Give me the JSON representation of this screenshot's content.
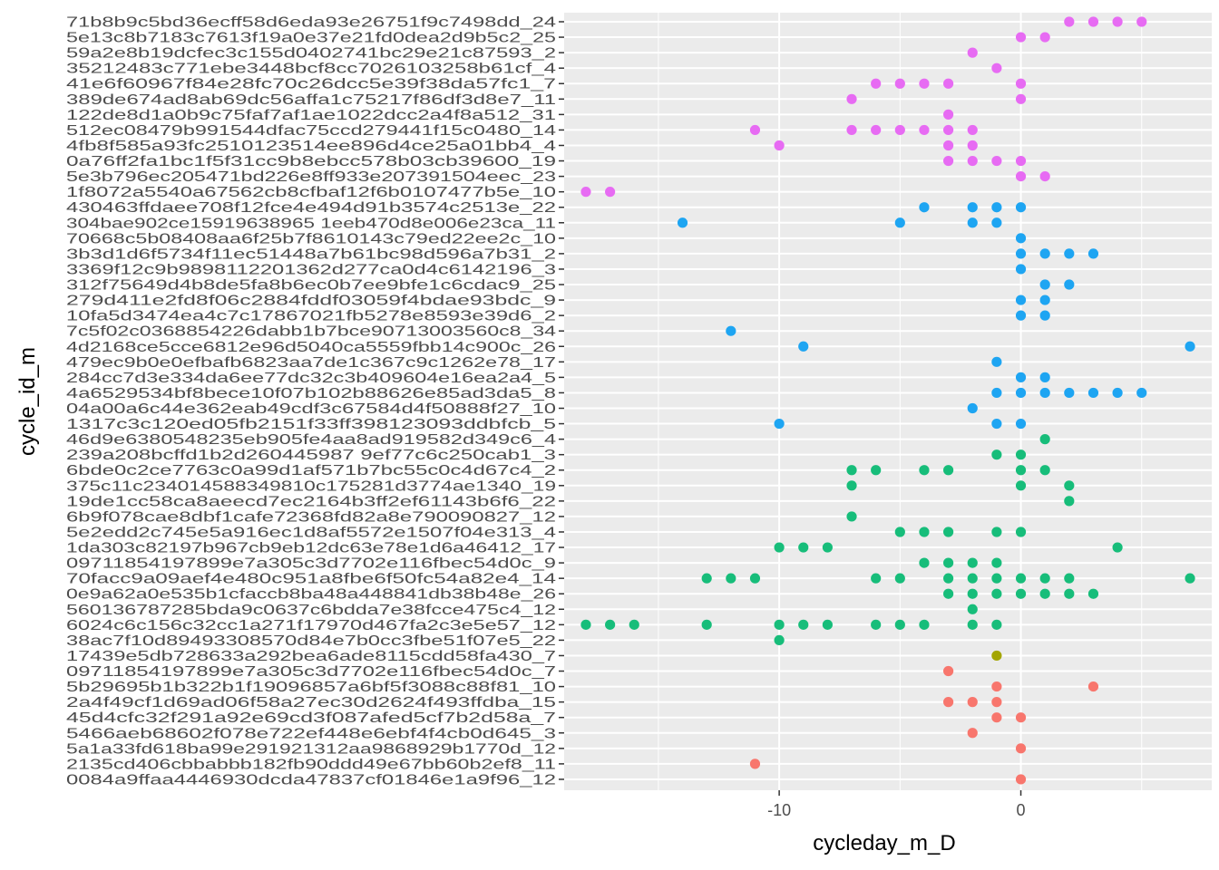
{
  "chart_data": {
    "type": "scatter",
    "xlabel": "cycleday_m_D",
    "ylabel": "cycle_id_m",
    "xlim": [
      -18.9,
      7.9
    ],
    "x_ticks": [
      -10,
      0
    ],
    "x_tick_labels": [
      "-10",
      "0"
    ],
    "grid": true,
    "legend": "none",
    "colors": {
      "panel": "#ebebeb",
      "gridline": "#ffffff",
      "magenta": "#e76bf3",
      "blue": "#1ea5f2",
      "green": "#17bd7a",
      "olive": "#a3a500",
      "red": "#f8766d"
    },
    "categories": [
      "71b8b9c5bd36ecff58d6eda93e26751f9c7498dd_24",
      "5e13c8b7183c7613f19a0e37e21fd0dea2d9b5c2_25",
      "59a2e8b19dcfec3c155d0402741bc29e21c87593_2",
      "35212483c771ebe3448bcf8cc7026103258b61cf_4",
      "41e6f60967f84e28fc70c26dcc5e39f38da57fc1_7",
      "389de674ad8ab69dc56affa1c75217f86df3d8e7_11",
      "122de8d1a0b9c75faf7af1ae1022dcc2a4f8a512_31",
      "512ec08479b991544dfac75ccd279441f15c0480_14",
      "4fb8f585a93fc2510123514ee896d4ce25a01bb4_4",
      "0a76ff2fa1bc1f5f31cc9b8ebcc578b03cb39600_19",
      "5e3b796ec205471bd226e8ff933e207391504eec_23",
      "1f8072a5540a67562cb8cfbaf12f6b0107477b5e_10",
      "430463ffdaee708f12fce4e494d91b3574c2513e_22",
      "304bae902ce15919638965 1eeb470d8e006e23ca_11",
      "70668c5b08408aa6f25b7f8610143c79ed22ee2c_10",
      "3b3d1d6f5734f11ec51448a7b61bc98d596a7b31_2",
      "3369f12c9b9898112201362d277ca0d4c6142196_3",
      "312f75649d4b8de5fa8b6ec0b7ee9bfe1c6cdac9_25",
      "279d411e2fd8f06c2884fddf03059f4bdae93bdc_9",
      "10fa5d3474ea4c7c17867021fb5278e8593e39d6_2",
      "7c5f02c0368854226dabb1b7bce90713003560c8_34",
      "4d2168ce5cce6812e96d5040ca5559fbb14c900c_26",
      "479ec9b0e0efbafb6823aa7de1c367c9c1262e78_17",
      "284cc7d3e334da6ee77dc32c3b409604e16ea2a4_5",
      "4a6529534bf8bece10f07b102b88626e85ad3da5_8",
      "04a00a6c44e362eab49cdf3c67584d4f50888f27_10",
      "1317c3c120ed05fb2151f33ff398123093ddbfcb_5",
      "46d9e6380548235eb905fe4aa8ad919582d349c6_4",
      "239a208bcffd1b2d260445987 9ef77c6c250cab1_3",
      "6bde0c2ce7763c0a99d1af571b7bc55c0c4d67c4_2",
      "375c11c234014588349810c175281d3774ae1340_19",
      "19de1cc58ca8aeecd7ec2164b3ff2ef61143b6f6_22",
      "6b9f078cae8dbf1cafe72368fd82a8e790090827_12",
      "5e2edd2c745e5a916ec1d8af5572e1507f04e313_4",
      "1da303c82197b967cb9eb12dc63e78e1d6a46412_17",
      "09711854197899e7a305c3d7702e116fbec54d0c_9",
      "70facc9a09aef4e480c951a8fbe6f50fc54a82e4_14",
      "0e9a62a0e535b1cfaccb8ba48a448841db38b48e_26",
      "560136787285bda9c0637c6bdda7e38fcce475c4_12",
      "6024c6c156c32cc1a271f17970d467fa2c3e5e57_12",
      "38ac7f10d89493308570d84e7b0cc3fbe51f07e5_22",
      "17439e5db728633a292bea6ade8115cdd58fa430_7",
      "09711854197899e7a305c3d7702e116fbec54d0c_7",
      "5b29695b1b322b1f19096857a6bf5f3088c88f81_10",
      "2a4f49cf1d69ad06f58a27ec30d2624f493ffdba_15",
      "45d4cfc32f291a92e69cd3f087afed5cf7b2d58a_7",
      "5466aeb68602f078e722ef448e6ebf4f4cb0d645_3",
      "5a1a33fd618ba99e291921312aa9868929b1770d_12",
      "2135cd406cbbabbb182fb90ddd49e67bb60b2ef8_11",
      "0084a9ffaa4446930dcda47837cf01846e1a9f96_12"
    ],
    "points": [
      {
        "cat": 0,
        "color": "magenta",
        "x": [
          2,
          3,
          4,
          5
        ]
      },
      {
        "cat": 1,
        "color": "magenta",
        "x": [
          0,
          1
        ]
      },
      {
        "cat": 2,
        "color": "magenta",
        "x": [
          -2
        ]
      },
      {
        "cat": 3,
        "color": "magenta",
        "x": [
          -1
        ]
      },
      {
        "cat": 4,
        "color": "magenta",
        "x": [
          -6,
          -5,
          -4,
          -3,
          0
        ]
      },
      {
        "cat": 5,
        "color": "magenta",
        "x": [
          -7,
          0
        ]
      },
      {
        "cat": 6,
        "color": "magenta",
        "x": [
          -3
        ]
      },
      {
        "cat": 7,
        "color": "magenta",
        "x": [
          -11,
          -7,
          -6,
          -5,
          -4,
          -3,
          -2
        ]
      },
      {
        "cat": 8,
        "color": "magenta",
        "x": [
          -10,
          -3,
          -2
        ]
      },
      {
        "cat": 9,
        "color": "magenta",
        "x": [
          -3,
          -2,
          -1,
          0
        ]
      },
      {
        "cat": 10,
        "color": "magenta",
        "x": [
          0,
          1
        ]
      },
      {
        "cat": 11,
        "color": "magenta",
        "x": [
          -18,
          -17
        ]
      },
      {
        "cat": 12,
        "color": "blue",
        "x": [
          -4,
          -2,
          -1,
          0
        ]
      },
      {
        "cat": 13,
        "color": "blue",
        "x": [
          -14,
          -5,
          -2,
          -1
        ]
      },
      {
        "cat": 14,
        "color": "blue",
        "x": [
          0
        ]
      },
      {
        "cat": 15,
        "color": "blue",
        "x": [
          0,
          1,
          2,
          3
        ]
      },
      {
        "cat": 16,
        "color": "blue",
        "x": [
          0
        ]
      },
      {
        "cat": 17,
        "color": "blue",
        "x": [
          1,
          2
        ]
      },
      {
        "cat": 18,
        "color": "blue",
        "x": [
          0,
          1
        ]
      },
      {
        "cat": 19,
        "color": "blue",
        "x": [
          0,
          1
        ]
      },
      {
        "cat": 20,
        "color": "blue",
        "x": [
          -12
        ]
      },
      {
        "cat": 21,
        "color": "blue",
        "x": [
          -9,
          7
        ]
      },
      {
        "cat": 22,
        "color": "blue",
        "x": [
          -1
        ]
      },
      {
        "cat": 23,
        "color": "blue",
        "x": [
          0,
          1
        ]
      },
      {
        "cat": 24,
        "color": "blue",
        "x": [
          -1,
          0,
          1,
          2,
          3,
          4,
          5
        ]
      },
      {
        "cat": 25,
        "color": "blue",
        "x": [
          -2
        ]
      },
      {
        "cat": 26,
        "color": "blue",
        "x": [
          -10,
          -1,
          0
        ]
      },
      {
        "cat": 27,
        "color": "green",
        "x": [
          1
        ]
      },
      {
        "cat": 28,
        "color": "green",
        "x": [
          -1,
          0
        ]
      },
      {
        "cat": 29,
        "color": "green",
        "x": [
          -7,
          -6,
          -4,
          -3,
          0,
          1
        ]
      },
      {
        "cat": 30,
        "color": "green",
        "x": [
          -7,
          0,
          2
        ]
      },
      {
        "cat": 31,
        "color": "green",
        "x": [
          2
        ]
      },
      {
        "cat": 32,
        "color": "green",
        "x": [
          -7
        ]
      },
      {
        "cat": 33,
        "color": "green",
        "x": [
          -5,
          -4,
          -3,
          -1,
          0
        ]
      },
      {
        "cat": 34,
        "color": "green",
        "x": [
          -10,
          -9,
          -8,
          4
        ]
      },
      {
        "cat": 35,
        "color": "green",
        "x": [
          -4,
          -3,
          -2,
          -1
        ]
      },
      {
        "cat": 36,
        "color": "green",
        "x": [
          -13,
          -12,
          -11,
          -6,
          -5,
          -3,
          -2,
          -1,
          0,
          1,
          2,
          7
        ]
      },
      {
        "cat": 37,
        "color": "green",
        "x": [
          -3,
          -2,
          -1,
          0,
          1,
          2,
          3
        ]
      },
      {
        "cat": 38,
        "color": "green",
        "x": [
          -2
        ]
      },
      {
        "cat": 39,
        "color": "green",
        "x": [
          -18,
          -17,
          -16,
          -13,
          -10,
          -9,
          -8,
          -6,
          -5,
          -4,
          -2,
          -1
        ]
      },
      {
        "cat": 40,
        "color": "green",
        "x": [
          -10
        ]
      },
      {
        "cat": 41,
        "color": "olive",
        "x": [
          -1
        ]
      },
      {
        "cat": 42,
        "color": "red",
        "x": [
          -3
        ]
      },
      {
        "cat": 43,
        "color": "red",
        "x": [
          -1,
          3
        ]
      },
      {
        "cat": 44,
        "color": "red",
        "x": [
          -3,
          -2,
          -1
        ]
      },
      {
        "cat": 45,
        "color": "red",
        "x": [
          -1,
          0
        ]
      },
      {
        "cat": 46,
        "color": "red",
        "x": [
          -2
        ]
      },
      {
        "cat": 47,
        "color": "red",
        "x": [
          0
        ]
      },
      {
        "cat": 48,
        "color": "red",
        "x": [
          -11
        ]
      },
      {
        "cat": 49,
        "color": "red",
        "x": [
          0
        ]
      }
    ]
  }
}
